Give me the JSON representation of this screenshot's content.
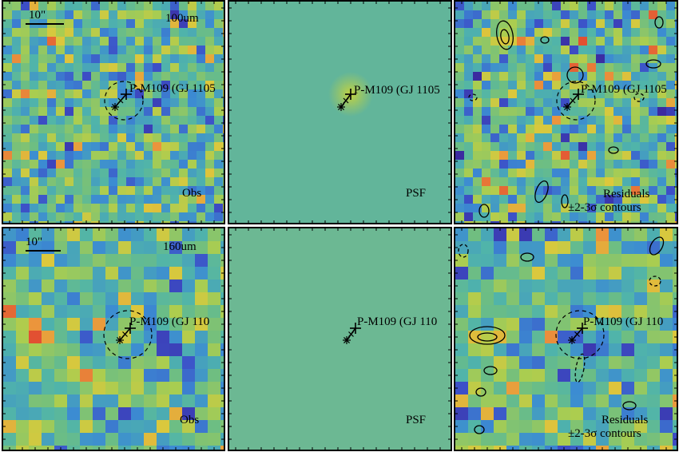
{
  "source_label": "P-M109 (GJ 1105",
  "source_label_short": "P-M109 (GJ 110",
  "scale_bar": "10\"",
  "rows": [
    {
      "band": "100um",
      "panels": [
        {
          "label": "Obs"
        },
        {
          "label": "PSF"
        },
        {
          "label": "Residuals",
          "sublabel": "±2-3σ contours"
        }
      ]
    },
    {
      "band": "160um",
      "panels": [
        {
          "label": "Obs"
        },
        {
          "label": "PSF"
        },
        {
          "label": "Residuals",
          "sublabel": "±2-3σ contours"
        }
      ]
    }
  ],
  "colors": {
    "psf_background": "#62b59a",
    "psf_background_lower": "#6cb893",
    "psf_core": "#c8d43a",
    "high": "#e25a32",
    "low": "#3b2aa0"
  }
}
